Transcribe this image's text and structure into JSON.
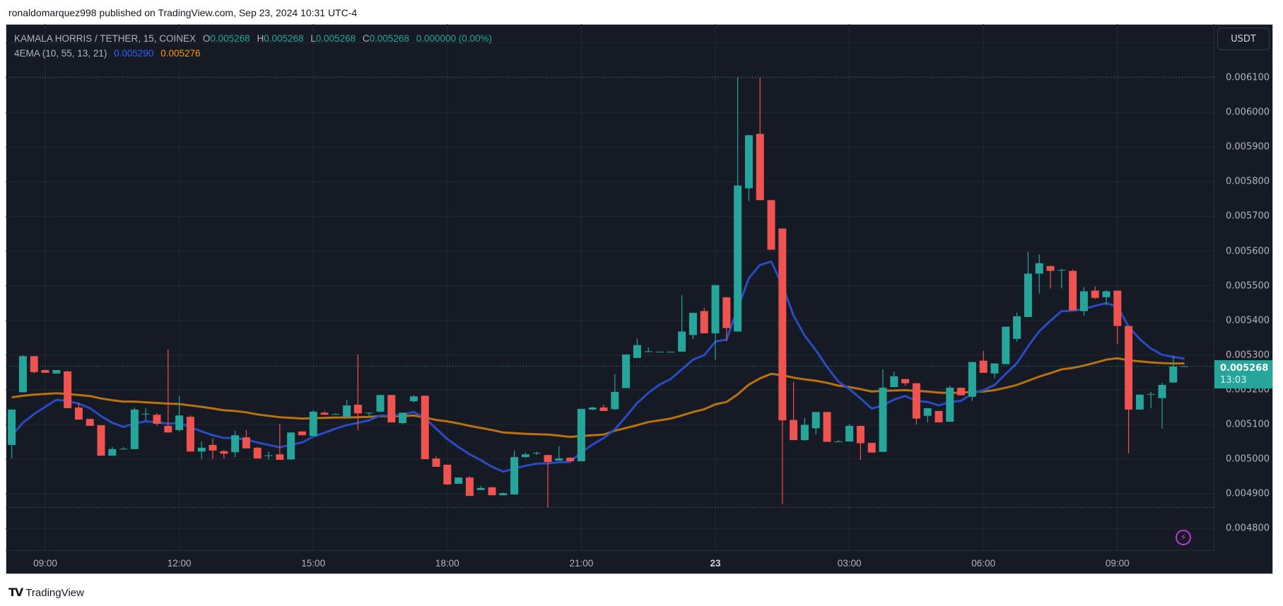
{
  "header": {
    "publish_line": "ronaldomarquez998 published on TradingView.com, Sep 23, 2024 10:31 UTC-4"
  },
  "legend": {
    "symbol": "KAMALA HORRIS / TETHER, 15, COINEX",
    "o_label": "O",
    "o": "0.005268",
    "h_label": "H",
    "h": "0.005268",
    "l_label": "L",
    "l": "0.005268",
    "c_label": "C",
    "c": "0.005268",
    "change": "0.000000 (0.00%)",
    "indicator": "4EMA (10, 55, 13, 21)",
    "ema_fast": "0.005290",
    "ema_slow": "0.005276"
  },
  "price_axis": {
    "currency_button": "USDT",
    "ticks": [
      "0.006100",
      "0.006000",
      "0.005900",
      "0.005800",
      "0.005700",
      "0.005600",
      "0.005500",
      "0.005400",
      "0.005300",
      "0.005200",
      "0.005100",
      "0.005000",
      "0.004900",
      "0.004800"
    ],
    "current_price": "0.005268",
    "countdown": "13:03"
  },
  "time_axis": {
    "ticks": [
      "09:00",
      "12:00",
      "15:00",
      "18:00",
      "21:00",
      "23",
      "03:00",
      "06:00",
      "09:00"
    ]
  },
  "footer": {
    "brand": "TradingView",
    "logo_mark": "TV"
  },
  "colors": {
    "up": "#26a69a",
    "down": "#ef5350",
    "ema_fast": "#2a4bc4",
    "ema_slow": "#b8720f",
    "background": "#161a25",
    "grid": "#232733",
    "legend_fast": "#2962ff",
    "legend_slow": "#ff9800"
  },
  "icons": {
    "alert": "lightning-bolt-icon"
  },
  "chart_data": {
    "type": "candlestick",
    "interval": "15",
    "ylim": [
      0.0047,
      0.00622
    ],
    "grid": true,
    "high_marker": 0.006102,
    "low_marker": 0.004861,
    "last_price": 0.005268,
    "x_ticks": [
      "09:00",
      "12:00",
      "15:00",
      "18:00",
      "21:00",
      "23",
      "03:00",
      "06:00",
      "09:00"
    ],
    "candles_ohlc": [
      [
        0.005041,
        0.005143,
        0.005002,
        0.005143
      ],
      [
        0.005193,
        0.0053,
        0.005193,
        0.005297
      ],
      [
        0.005297,
        0.005297,
        0.005247,
        0.005251
      ],
      [
        0.005257,
        0.005258,
        0.005249,
        0.005249
      ],
      [
        0.005247,
        0.005257,
        0.005247,
        0.005257
      ],
      [
        0.005253,
        0.005255,
        0.005147,
        0.005147
      ],
      [
        0.005149,
        0.005163,
        0.005114,
        0.005114
      ],
      [
        0.005116,
        0.005116,
        0.005096,
        0.005096
      ],
      [
        0.005098,
        0.005098,
        0.00501,
        0.00501
      ],
      [
        0.00501,
        0.005035,
        0.00501,
        0.005029
      ],
      [
        0.005029,
        0.005035,
        0.005029,
        0.00503
      ],
      [
        0.005029,
        0.005149,
        0.005029,
        0.005143
      ],
      [
        0.00513,
        0.005147,
        0.00511,
        0.005131
      ],
      [
        0.005128,
        0.005133,
        0.005096,
        0.005102
      ],
      [
        0.005096,
        0.005316,
        0.005077,
        0.005077
      ],
      [
        0.005084,
        0.005183,
        0.00508,
        0.005126
      ],
      [
        0.005122,
        0.005126,
        0.005022,
        0.005022
      ],
      [
        0.005022,
        0.005051,
        0.005,
        0.005033
      ],
      [
        0.005041,
        0.005061,
        0.005,
        0.005025
      ],
      [
        0.005023,
        0.005027,
        0.005002,
        0.005016
      ],
      [
        0.00502,
        0.005082,
        0.005006,
        0.005069
      ],
      [
        0.005063,
        0.005084,
        0.005031,
        0.005031
      ],
      [
        0.005033,
        0.005035,
        0.005002,
        0.005002
      ],
      [
        0.00501,
        0.005022,
        0.004999,
        0.005011
      ],
      [
        0.005014,
        0.005102,
        0.004998,
        0.004998
      ],
      [
        0.004999,
        0.005077,
        0.004999,
        0.005077
      ],
      [
        0.00508,
        0.00508,
        0.005069,
        0.005069
      ],
      [
        0.005067,
        0.005141,
        0.005067,
        0.005137
      ],
      [
        0.005134,
        0.005139,
        0.005128,
        0.005128
      ],
      [
        0.005128,
        0.005133,
        0.005128,
        0.00513
      ],
      [
        0.005122,
        0.005171,
        0.005122,
        0.005155
      ],
      [
        0.005157,
        0.005302,
        0.005084,
        0.005132
      ],
      [
        0.005133,
        0.005134,
        0.005122,
        0.005134
      ],
      [
        0.005137,
        0.005185,
        0.005135,
        0.005185
      ],
      [
        0.005185,
        0.005185,
        0.005106,
        0.005106
      ],
      [
        0.005104,
        0.005134,
        0.0051,
        0.005134
      ],
      [
        0.005167,
        0.005185,
        0.005163,
        0.005181
      ],
      [
        0.005183,
        0.005183,
        0.005,
        0.005
      ],
      [
        0.005002,
        0.005008,
        0.004978,
        0.004978
      ],
      [
        0.004984,
        0.004984,
        0.004927,
        0.004927
      ],
      [
        0.004929,
        0.004947,
        0.004929,
        0.004947
      ],
      [
        0.004947,
        0.004951,
        0.004894,
        0.004894
      ],
      [
        0.004911,
        0.004923,
        0.004911,
        0.004917
      ],
      [
        0.004919,
        0.004919,
        0.004896,
        0.004896
      ],
      [
        0.004896,
        0.004904,
        0.004896,
        0.004902
      ],
      [
        0.004898,
        0.005025,
        0.004898,
        0.005006
      ],
      [
        0.005006,
        0.00502,
        0.005004,
        0.005014
      ],
      [
        0.005017,
        0.005022,
        0.005012,
        0.005018
      ],
      [
        0.005012,
        0.005012,
        0.004861,
        0.004992
      ],
      [
        0.004996,
        0.005037,
        0.004996,
        0.005002
      ],
      [
        0.005004,
        0.005006,
        0.004994,
        0.004994
      ],
      [
        0.004994,
        0.005145,
        0.004994,
        0.005145
      ],
      [
        0.005143,
        0.005151,
        0.005141,
        0.005149
      ],
      [
        0.005149,
        0.005157,
        0.005139,
        0.005139
      ],
      [
        0.005144,
        0.005245,
        0.005142,
        0.005194
      ],
      [
        0.005205,
        0.005302,
        0.005205,
        0.005302
      ],
      [
        0.005292,
        0.005348,
        0.005292,
        0.005329
      ],
      [
        0.00531,
        0.005323,
        0.00531,
        0.005311
      ],
      [
        0.00531,
        0.00531,
        0.00531,
        0.00531
      ],
      [
        0.00531,
        0.00531,
        0.00531,
        0.00531
      ],
      [
        0.00531,
        0.005473,
        0.00531,
        0.005368
      ],
      [
        0.005358,
        0.005422,
        0.005346,
        0.005422
      ],
      [
        0.005427,
        0.005437,
        0.005363,
        0.005363
      ],
      [
        0.005363,
        0.005502,
        0.005287,
        0.005502
      ],
      [
        0.005467,
        0.005467,
        0.00534,
        0.005378
      ],
      [
        0.005368,
        0.006102,
        0.005368,
        0.005789
      ],
      [
        0.005781,
        0.005935,
        0.005744,
        0.005934
      ],
      [
        0.005938,
        0.0061,
        0.005747,
        0.005747
      ],
      [
        0.005747,
        0.005747,
        0.005604,
        0.005604
      ],
      [
        0.005665,
        0.005665,
        0.00487,
        0.005112
      ],
      [
        0.005113,
        0.005223,
        0.005055,
        0.005055
      ],
      [
        0.005055,
        0.005119,
        0.005053,
        0.005099
      ],
      [
        0.005089,
        0.005136,
        0.005071,
        0.005136
      ],
      [
        0.005136,
        0.005136,
        0.00505,
        0.00505
      ],
      [
        0.00505,
        0.005055,
        0.00505,
        0.005051
      ],
      [
        0.005051,
        0.005102,
        0.005051,
        0.005096
      ],
      [
        0.005096,
        0.005096,
        0.004998,
        0.005046
      ],
      [
        0.005047,
        0.005047,
        0.005019,
        0.005019
      ],
      [
        0.005021,
        0.005259,
        0.005021,
        0.005206
      ],
      [
        0.005208,
        0.005253,
        0.005208,
        0.005239
      ],
      [
        0.005231,
        0.005231,
        0.005212,
        0.005219
      ],
      [
        0.005219,
        0.005219,
        0.0051,
        0.005117
      ],
      [
        0.005125,
        0.005147,
        0.005106,
        0.005147
      ],
      [
        0.005139,
        0.005139,
        0.005106,
        0.005106
      ],
      [
        0.005108,
        0.005212,
        0.005108,
        0.005206
      ],
      [
        0.005206,
        0.005206,
        0.005184,
        0.005184
      ],
      [
        0.00518,
        0.00528,
        0.005168,
        0.00528
      ],
      [
        0.005284,
        0.005312,
        0.005249,
        0.005249
      ],
      [
        0.005247,
        0.005276,
        0.005233,
        0.005276
      ],
      [
        0.005274,
        0.005382,
        0.005274,
        0.005382
      ],
      [
        0.005347,
        0.005423,
        0.005339,
        0.005412
      ],
      [
        0.00541,
        0.005598,
        0.00541,
        0.005535
      ],
      [
        0.005535,
        0.00559,
        0.005478,
        0.005565
      ],
      [
        0.005557,
        0.005557,
        0.005492,
        0.005543
      ],
      [
        0.005545,
        0.005549,
        0.005492,
        0.005546
      ],
      [
        0.005543,
        0.005547,
        0.005429,
        0.005429
      ],
      [
        0.005427,
        0.005496,
        0.005414,
        0.005484
      ],
      [
        0.005486,
        0.005498,
        0.005461,
        0.005465
      ],
      [
        0.005467,
        0.005488,
        0.005444,
        0.005484
      ],
      [
        0.005486,
        0.005486,
        0.005331,
        0.005384
      ],
      [
        0.005384,
        0.005384,
        0.005017,
        0.005143
      ],
      [
        0.005143,
        0.005186,
        0.005143,
        0.005186
      ],
      [
        0.005187,
        0.005194,
        0.005147,
        0.005188
      ],
      [
        0.005176,
        0.00522,
        0.005088,
        0.005214
      ],
      [
        0.005221,
        0.005298,
        0.005221,
        0.005267
      ],
      [
        0.005268,
        0.005268,
        0.005268,
        0.005268
      ]
    ],
    "ema_fast": [
      0.005068,
      0.005105,
      0.00513,
      0.005151,
      0.005171,
      0.005168,
      0.00516,
      0.005147,
      0.005124,
      0.005105,
      0.005093,
      0.005103,
      0.005109,
      0.005107,
      0.005102,
      0.005105,
      0.005092,
      0.00508,
      0.005069,
      0.005061,
      0.005061,
      0.005056,
      0.005048,
      0.005041,
      0.005034,
      0.005042,
      0.005048,
      0.005065,
      0.005076,
      0.005088,
      0.005098,
      0.005105,
      0.005112,
      0.005126,
      0.005125,
      0.005129,
      0.005136,
      0.005119,
      0.005088,
      0.005058,
      0.005035,
      0.005014,
      0.004997,
      0.004978,
      0.004964,
      0.004973,
      0.004981,
      0.004987,
      0.004988,
      0.004991,
      0.004992,
      0.00502,
      0.005042,
      0.005061,
      0.005086,
      0.005123,
      0.005162,
      0.005191,
      0.005215,
      0.005231,
      0.005259,
      0.005287,
      0.0053,
      0.005339,
      0.005345,
      0.005435,
      0.005522,
      0.00556,
      0.00557,
      0.005501,
      0.005414,
      0.005356,
      0.005314,
      0.005266,
      0.005224,
      0.005202,
      0.005175,
      0.005146,
      0.005155,
      0.005172,
      0.005182,
      0.005168,
      0.005165,
      0.005155,
      0.005165,
      0.005168,
      0.005189,
      0.005199,
      0.005214,
      0.005246,
      0.005277,
      0.005325,
      0.005369,
      0.005399,
      0.005427,
      0.005428,
      0.005433,
      0.005442,
      0.00545,
      0.00544,
      0.005382,
      0.005346,
      0.005319,
      0.005301,
      0.005295,
      0.00529
    ],
    "ema_slow": [
      0.005178,
      0.005183,
      0.005186,
      0.005188,
      0.00519,
      0.005188,
      0.005185,
      0.005182,
      0.005175,
      0.00517,
      0.005166,
      0.005166,
      0.005164,
      0.005162,
      0.00516,
      0.005159,
      0.005155,
      0.005151,
      0.005146,
      0.005141,
      0.005139,
      0.005135,
      0.005129,
      0.005125,
      0.005121,
      0.005119,
      0.005117,
      0.005118,
      0.005119,
      0.00512,
      0.00512,
      0.005121,
      0.005122,
      0.005124,
      0.005124,
      0.005124,
      0.005126,
      0.00512,
      0.005113,
      0.005109,
      0.005103,
      0.005096,
      0.00509,
      0.005084,
      0.005077,
      0.005075,
      0.005073,
      0.005072,
      0.005071,
      0.005068,
      0.005064,
      0.005067,
      0.005069,
      0.005071,
      0.005082,
      0.00509,
      0.005098,
      0.005107,
      0.005112,
      0.005117,
      0.005126,
      0.005136,
      0.005144,
      0.005158,
      0.005165,
      0.005187,
      0.005215,
      0.005233,
      0.005246,
      0.005242,
      0.005235,
      0.00523,
      0.005226,
      0.00522,
      0.005212,
      0.005208,
      0.005202,
      0.005195,
      0.005197,
      0.005198,
      0.005199,
      0.005197,
      0.005195,
      0.005192,
      0.005191,
      0.005192,
      0.005194,
      0.005195,
      0.005199,
      0.005206,
      0.005214,
      0.005226,
      0.005238,
      0.005248,
      0.005259,
      0.005263,
      0.00527,
      0.005278,
      0.005287,
      0.005291,
      0.005285,
      0.005282,
      0.005279,
      0.005277,
      0.005276,
      0.005276
    ]
  }
}
